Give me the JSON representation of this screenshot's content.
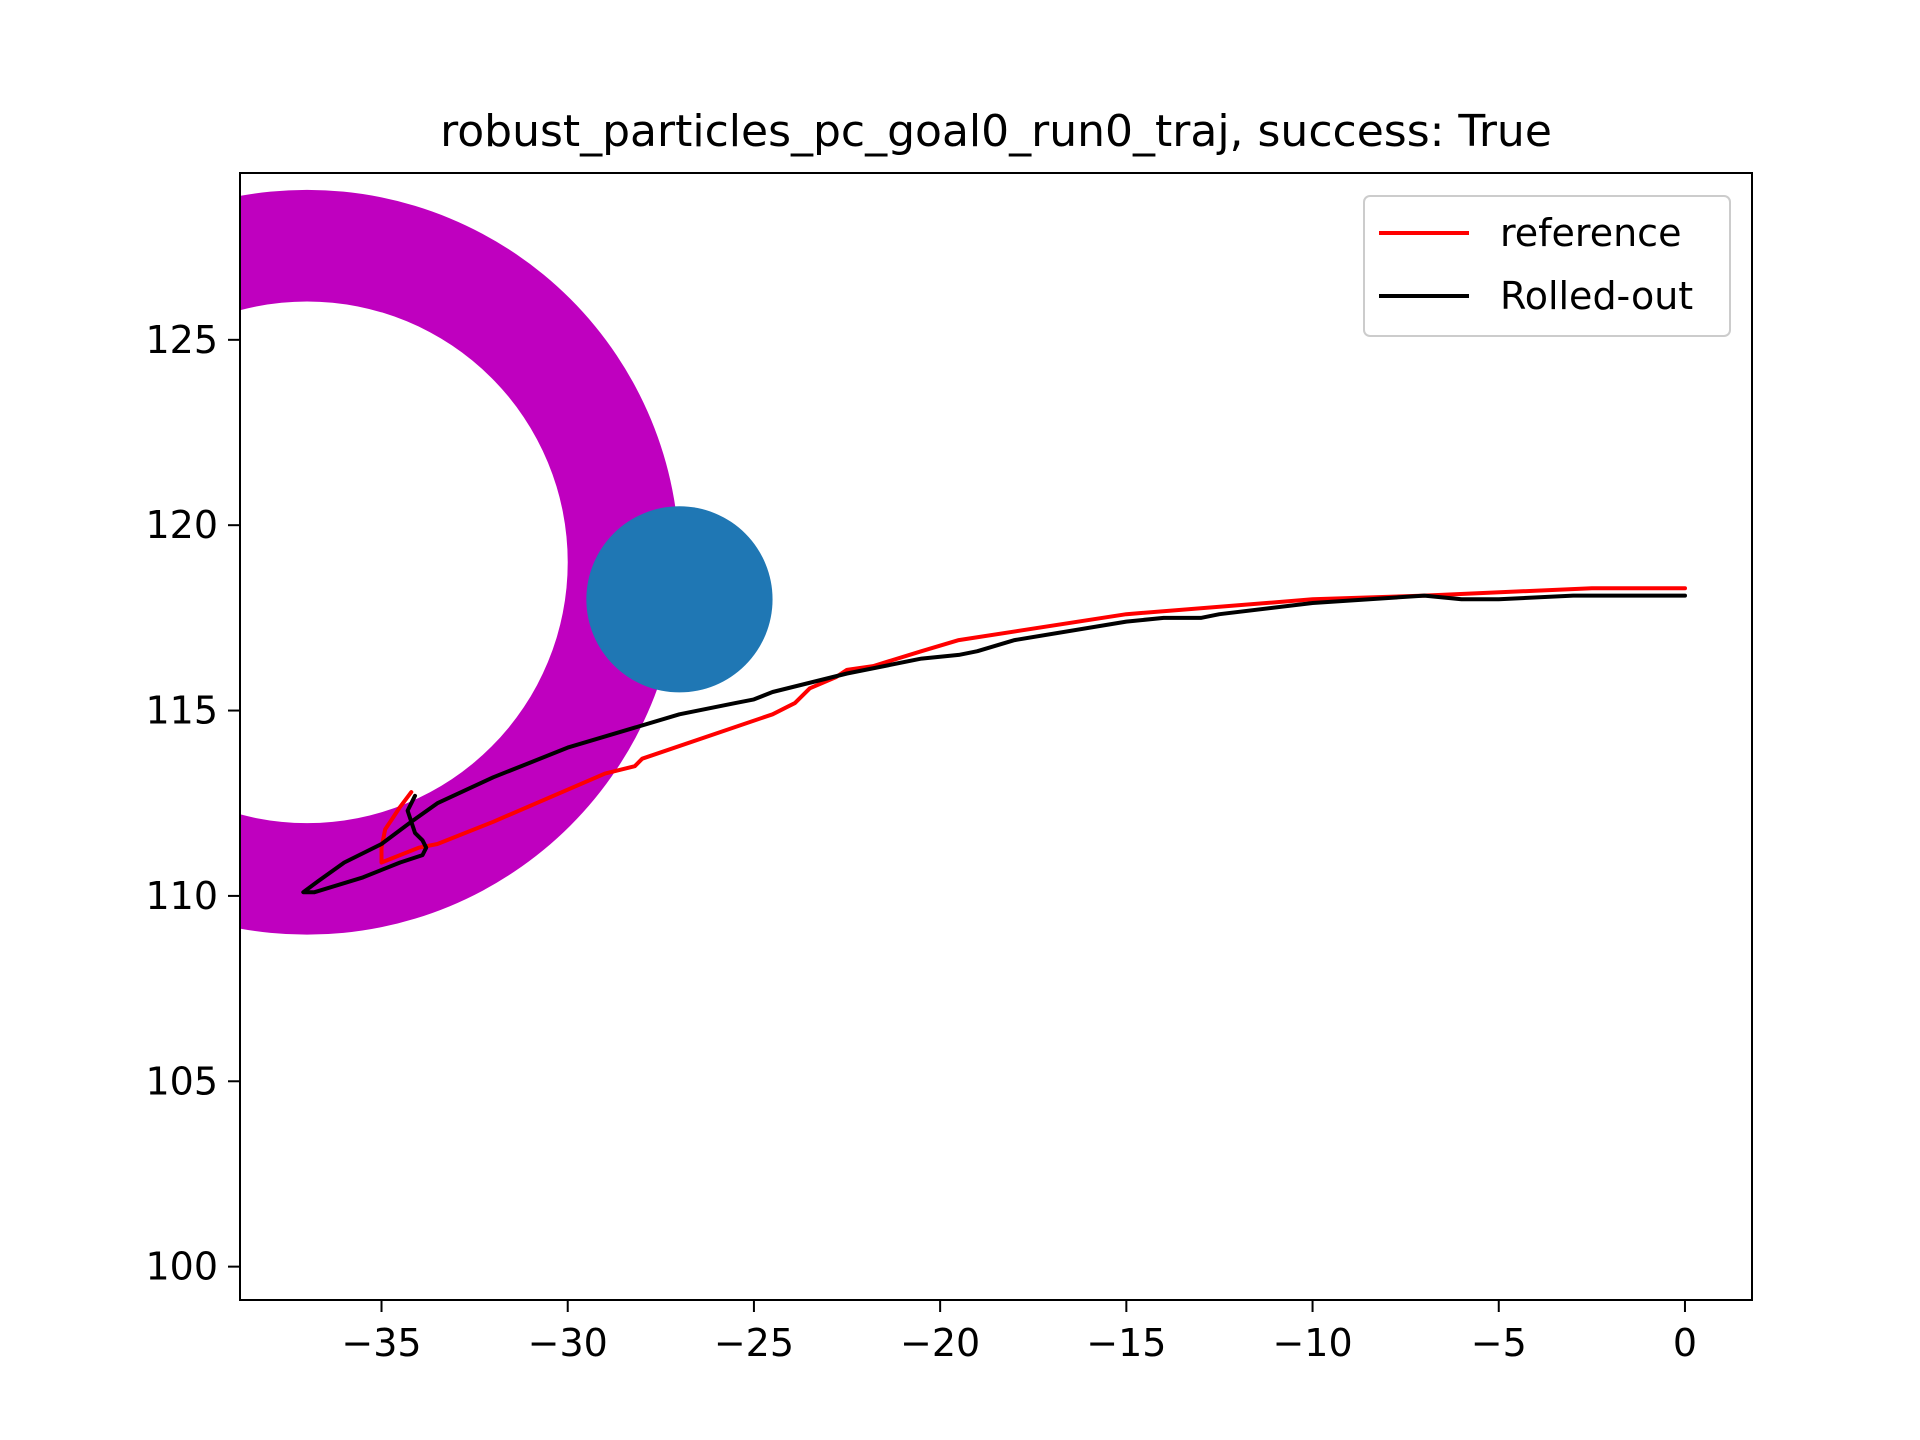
{
  "chart_data": {
    "type": "line",
    "title": "robust_particles_pc_goal0_run0_traj, success: True",
    "xlabel": "",
    "ylabel": "",
    "xlim": [
      -38.8,
      1.8
    ],
    "ylim": [
      99.1,
      129.5
    ],
    "xticks": [
      -35,
      -30,
      -25,
      -20,
      -15,
      -10,
      -5,
      0
    ],
    "xtick_labels": [
      "−35",
      "−30",
      "−25",
      "−20",
      "−15",
      "−10",
      "−5",
      "0"
    ],
    "yticks": [
      100,
      105,
      110,
      115,
      120,
      125
    ],
    "ytick_labels": [
      "100",
      "105",
      "110",
      "115",
      "120",
      "125"
    ],
    "grid": false,
    "legend_position": "upper right",
    "obstacles": [
      {
        "type": "ring",
        "center": [
          -37,
          119
        ],
        "inner_radius": 7,
        "outer_radius": 10,
        "color": "#bf00bf"
      },
      {
        "type": "disk",
        "center": [
          -27,
          118
        ],
        "radius": 2.5,
        "color": "#1f77b4"
      }
    ],
    "series": [
      {
        "name": "reference",
        "color": "#ff0000",
        "points": [
          [
            0,
            118.3
          ],
          [
            -2.5,
            118.3
          ],
          [
            -7,
            118.1
          ],
          [
            -10,
            118.0
          ],
          [
            -15,
            117.6
          ],
          [
            -19.5,
            116.9
          ],
          [
            -20.5,
            116.6
          ],
          [
            -21.8,
            116.2
          ],
          [
            -22.5,
            116.1
          ],
          [
            -22.8,
            115.9
          ],
          [
            -23.5,
            115.6
          ],
          [
            -23.9,
            115.2
          ],
          [
            -24.1,
            115.1
          ],
          [
            -24.5,
            114.9
          ],
          [
            -28,
            113.7
          ],
          [
            -28.2,
            113.5
          ],
          [
            -29,
            113.3
          ],
          [
            -32,
            112.0
          ],
          [
            -33.5,
            111.4
          ],
          [
            -34.0,
            111.3
          ],
          [
            -35.0,
            110.9
          ],
          [
            -35.0,
            111.3
          ],
          [
            -34.9,
            111.8
          ],
          [
            -34.7,
            112.1
          ],
          [
            -34.5,
            112.4
          ],
          [
            -34.2,
            112.8
          ]
        ]
      },
      {
        "name": "Rolled-out",
        "color": "#000000",
        "points": [
          [
            0,
            118.1
          ],
          [
            -3,
            118.1
          ],
          [
            -5,
            118.0
          ],
          [
            -5.5,
            118.0
          ],
          [
            -6,
            118.0
          ],
          [
            -7,
            118.1
          ],
          [
            -10,
            117.9
          ],
          [
            -12.5,
            117.6
          ],
          [
            -13,
            117.5
          ],
          [
            -14,
            117.5
          ],
          [
            -15,
            117.4
          ],
          [
            -18,
            116.9
          ],
          [
            -19,
            116.6
          ],
          [
            -19.5,
            116.5
          ],
          [
            -20.5,
            116.4
          ],
          [
            -22.5,
            116.0
          ],
          [
            -24.5,
            115.5
          ],
          [
            -25,
            115.3
          ],
          [
            -25.5,
            115.2
          ],
          [
            -27,
            114.9
          ],
          [
            -30,
            114.0
          ],
          [
            -31,
            113.6
          ],
          [
            -32,
            113.2
          ],
          [
            -33.5,
            112.5
          ],
          [
            -34.2,
            112.0
          ],
          [
            -35.0,
            111.4
          ],
          [
            -36.0,
            110.9
          ],
          [
            -36.7,
            110.4
          ],
          [
            -37.1,
            110.1
          ],
          [
            -36.8,
            110.1
          ],
          [
            -35.5,
            110.5
          ],
          [
            -34.5,
            110.9
          ],
          [
            -33.9,
            111.1
          ],
          [
            -33.8,
            111.3
          ],
          [
            -33.9,
            111.5
          ],
          [
            -34.1,
            111.7
          ],
          [
            -34.2,
            112.0
          ],
          [
            -34.3,
            112.3
          ],
          [
            -34.1,
            112.7
          ]
        ]
      }
    ]
  }
}
